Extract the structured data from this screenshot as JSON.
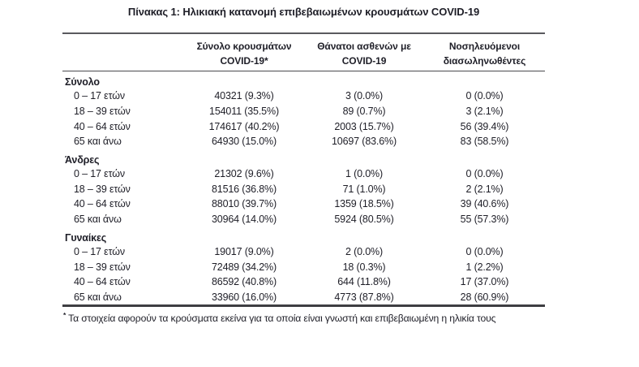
{
  "title": "Πίνακας 1: Ηλικιακή κατανομή επιβεβαιωμένων κρουσμάτων COVID-19",
  "colors": {
    "text": "#1e1e27",
    "rule_top": "#5a5a5e",
    "rule_header": "#4a4a4e",
    "rule_bottom": "#3e3e42",
    "background": "#ffffff"
  },
  "table": {
    "columns": [
      {
        "line1": "",
        "line2": ""
      },
      {
        "line1": "Σύνολο κρουσμάτων",
        "line2": "COVID-19*"
      },
      {
        "line1": "Θάνατοι ασθενών με",
        "line2": "COVID-19"
      },
      {
        "line1": "Νοσηλευόμενοι",
        "line2": "διασωληνωθέντες"
      }
    ],
    "sections": [
      {
        "label": "Σύνολο",
        "rows": [
          {
            "age": "0 – 17 ετών",
            "cases": "40321 (9.3%)",
            "deaths": "3 (0.0%)",
            "intubated": "0 (0.0%)"
          },
          {
            "age": "18 – 39 ετών",
            "cases": "154011 (35.5%)",
            "deaths": "89 (0.7%)",
            "intubated": "3 (2.1%)"
          },
          {
            "age": "40 – 64 ετών",
            "cases": "174617 (40.2%)",
            "deaths": "2003 (15.7%)",
            "intubated": "56 (39.4%)"
          },
          {
            "age": "65 και άνω",
            "cases": "64930 (15.0%)",
            "deaths": "10697 (83.6%)",
            "intubated": "83 (58.5%)"
          }
        ]
      },
      {
        "label": "Άνδρες",
        "rows": [
          {
            "age": "0 – 17 ετών",
            "cases": "21302 (9.6%)",
            "deaths": "1 (0.0%)",
            "intubated": "0 (0.0%)"
          },
          {
            "age": "18 – 39 ετών",
            "cases": "81516 (36.8%)",
            "deaths": "71 (1.0%)",
            "intubated": "2 (2.1%)"
          },
          {
            "age": "40 – 64 ετών",
            "cases": "88010 (39.7%)",
            "deaths": "1359 (18.5%)",
            "intubated": "39 (40.6%)"
          },
          {
            "age": "65 και άνω",
            "cases": "30964 (14.0%)",
            "deaths": "5924 (80.5%)",
            "intubated": "55 (57.3%)"
          }
        ]
      },
      {
        "label": "Γυναίκες",
        "rows": [
          {
            "age": "0 – 17 ετών",
            "cases": "19017 (9.0%)",
            "deaths": "2 (0.0%)",
            "intubated": "0 (0.0%)"
          },
          {
            "age": "18 – 39 ετών",
            "cases": "72489 (34.2%)",
            "deaths": "18 (0.3%)",
            "intubated": "1 (2.2%)"
          },
          {
            "age": "40 – 64 ετών",
            "cases": "86592 (40.8%)",
            "deaths": "644 (11.8%)",
            "intubated": "17 (37.0%)"
          },
          {
            "age": "65 και άνω",
            "cases": "33960 (16.0%)",
            "deaths": "4773 (87.8%)",
            "intubated": "28 (60.9%)"
          }
        ]
      }
    ]
  },
  "footnote": {
    "marker": "*",
    "text": "Τα στοιχεία αφορούν τα κρούσματα εκείνα για τα οποία είναι γνωστή και επιβεβαιωμένη η ηλικία τους"
  }
}
